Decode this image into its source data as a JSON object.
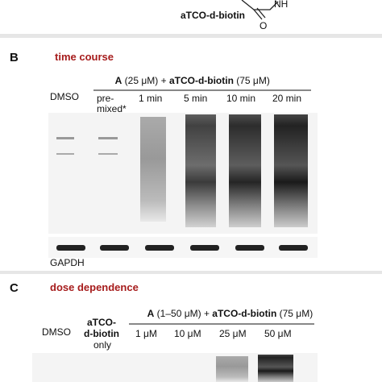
{
  "top": {
    "compound_label": "aTCO-d-biotin",
    "atoms": [
      "NH",
      "O"
    ]
  },
  "panel_b": {
    "letter": "B",
    "title": "time course",
    "treatment": [
      "A",
      " (25 μM) + ",
      "aTCO-d-biotin",
      " (75 μM)"
    ],
    "lanes": [
      "DMSO",
      "pre-",
      "mixed*",
      "1 min",
      "5 min",
      "10 min",
      "20 min"
    ],
    "loading_control": "GAPDH"
  },
  "panel_c": {
    "letter": "C",
    "title": "dose dependence",
    "treatment": [
      "A",
      " (1–50 μM) + ",
      "aTCO-d-biotin",
      " (75 μM)"
    ],
    "lanes": [
      "DMSO",
      "aTCO-",
      "d-biotin",
      "only",
      "1 μM",
      "10 μM",
      "25 μM",
      "50 μM"
    ]
  }
}
